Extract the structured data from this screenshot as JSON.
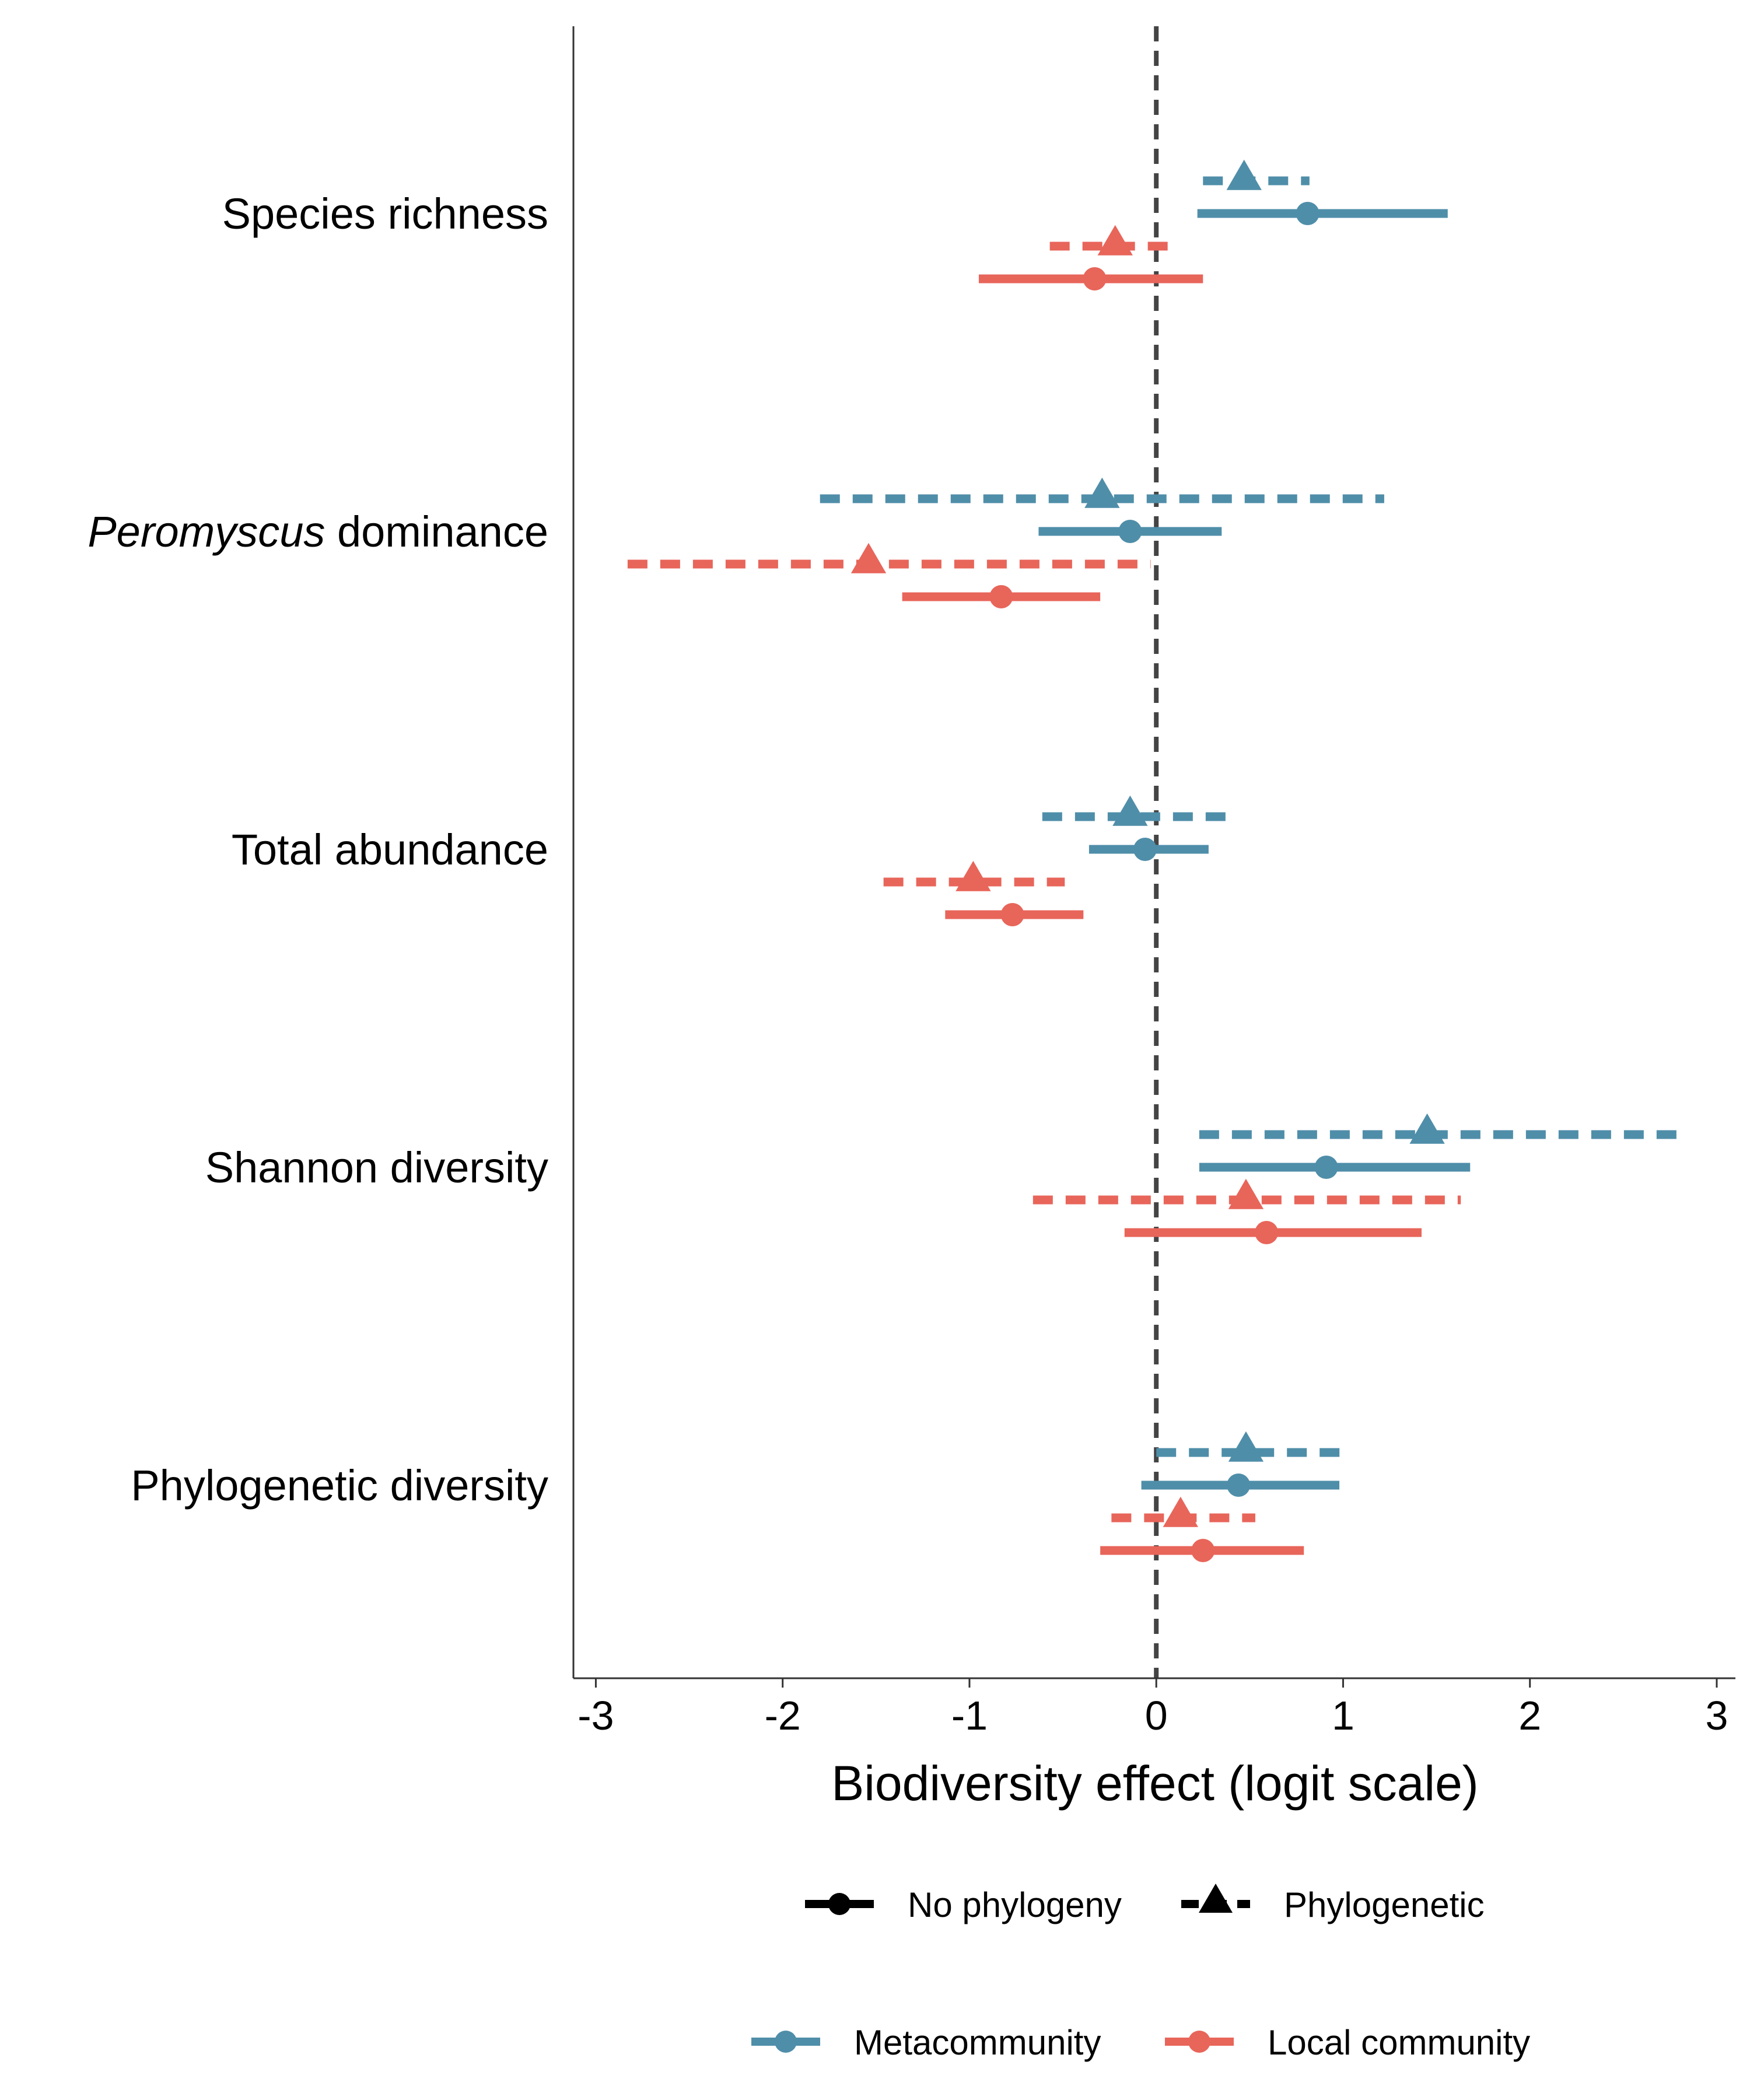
{
  "colors": {
    "metacommunity": "#4f8ea9",
    "local": "#e8655a",
    "zero_line": "#444444",
    "axis": "#333333"
  },
  "chart_data": {
    "type": "forest",
    "xlabel": "Biodiversity effect (logit scale)",
    "xlim": [
      -3.12,
      3.1
    ],
    "xticks": [
      -3,
      -2,
      -1,
      0,
      1,
      2,
      3
    ],
    "xtick_labels": [
      "-3",
      "-2",
      "-1",
      "0",
      "1",
      "2",
      "3"
    ],
    "reference_line": 0,
    "categories": [
      {
        "label": "Species richness",
        "italic_prefix": ""
      },
      {
        "label": " dominance",
        "italic_prefix": "Peromyscus"
      },
      {
        "label": "Total abundance",
        "italic_prefix": ""
      },
      {
        "label": "Shannon diversity",
        "italic_prefix": ""
      },
      {
        "label": "Phylogenetic diversity",
        "italic_prefix": ""
      }
    ],
    "rows": [
      {
        "metric": 0,
        "community": "metacommunity",
        "model": "phylogenetic",
        "estimate": 0.47,
        "lower": 0.25,
        "upper": 0.82
      },
      {
        "metric": 0,
        "community": "metacommunity",
        "model": "no_phylogeny",
        "estimate": 0.81,
        "lower": 0.22,
        "upper": 1.56
      },
      {
        "metric": 0,
        "community": "local",
        "model": "phylogenetic",
        "estimate": -0.22,
        "lower": -0.57,
        "upper": 0.12
      },
      {
        "metric": 0,
        "community": "local",
        "model": "no_phylogeny",
        "estimate": -0.33,
        "lower": -0.95,
        "upper": 0.25
      },
      {
        "metric": 1,
        "community": "metacommunity",
        "model": "phylogenetic",
        "estimate": -0.29,
        "lower": -1.8,
        "upper": 1.22
      },
      {
        "metric": 1,
        "community": "metacommunity",
        "model": "no_phylogeny",
        "estimate": -0.14,
        "lower": -0.63,
        "upper": 0.35
      },
      {
        "metric": 1,
        "community": "local",
        "model": "phylogenetic",
        "estimate": -1.54,
        "lower": -2.83,
        "upper": -0.03
      },
      {
        "metric": 1,
        "community": "local",
        "model": "no_phylogeny",
        "estimate": -0.83,
        "lower": -1.36,
        "upper": -0.3
      },
      {
        "metric": 2,
        "community": "metacommunity",
        "model": "phylogenetic",
        "estimate": -0.14,
        "lower": -0.61,
        "upper": 0.39
      },
      {
        "metric": 2,
        "community": "metacommunity",
        "model": "no_phylogeny",
        "estimate": -0.06,
        "lower": -0.36,
        "upper": 0.28
      },
      {
        "metric": 2,
        "community": "local",
        "model": "phylogenetic",
        "estimate": -0.98,
        "lower": -1.46,
        "upper": -0.49
      },
      {
        "metric": 2,
        "community": "local",
        "model": "no_phylogeny",
        "estimate": -0.77,
        "lower": -1.13,
        "upper": -0.39
      },
      {
        "metric": 3,
        "community": "metacommunity",
        "model": "phylogenetic",
        "estimate": 1.45,
        "lower": 0.23,
        "upper": 2.8
      },
      {
        "metric": 3,
        "community": "metacommunity",
        "model": "no_phylogeny",
        "estimate": 0.91,
        "lower": 0.23,
        "upper": 1.68
      },
      {
        "metric": 3,
        "community": "local",
        "model": "phylogenetic",
        "estimate": 0.48,
        "lower": -0.66,
        "upper": 1.63
      },
      {
        "metric": 3,
        "community": "local",
        "model": "no_phylogeny",
        "estimate": 0.59,
        "lower": -0.17,
        "upper": 1.42
      },
      {
        "metric": 4,
        "community": "metacommunity",
        "model": "phylogenetic",
        "estimate": 0.48,
        "lower": 0.0,
        "upper": 1.0
      },
      {
        "metric": 4,
        "community": "metacommunity",
        "model": "no_phylogeny",
        "estimate": 0.44,
        "lower": -0.08,
        "upper": 0.98
      },
      {
        "metric": 4,
        "community": "local",
        "model": "phylogenetic",
        "estimate": 0.13,
        "lower": -0.24,
        "upper": 0.53
      },
      {
        "metric": 4,
        "community": "local",
        "model": "no_phylogeny",
        "estimate": 0.25,
        "lower": -0.3,
        "upper": 0.79
      }
    ],
    "legend_shape": [
      {
        "key": "no_phylogeny",
        "label": "No phylogeny",
        "marker": "circle",
        "line": "solid"
      },
      {
        "key": "phylogenetic",
        "label": "Phylogenetic",
        "marker": "triangle",
        "line": "dashed"
      }
    ],
    "legend_color": [
      {
        "key": "metacommunity",
        "label": "Metacommunity"
      },
      {
        "key": "local",
        "label": "Local community"
      }
    ],
    "legend_placement": "bottom",
    "grid": false
  }
}
